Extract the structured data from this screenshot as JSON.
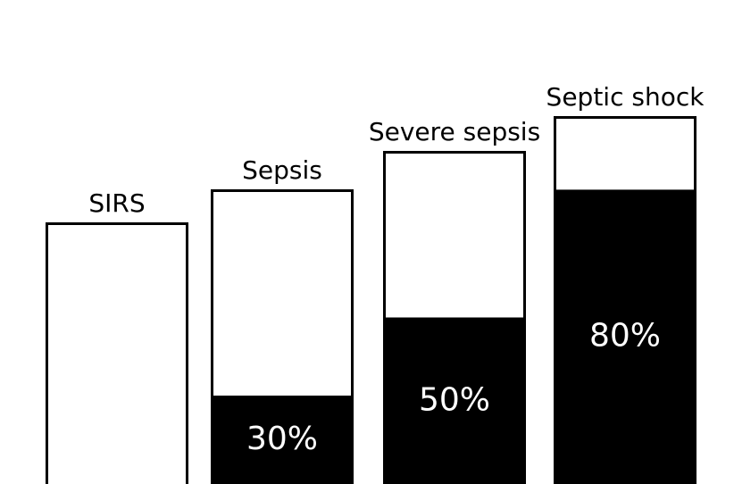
{
  "chart_data": {
    "type": "bar",
    "categories": [
      "SIRS",
      "Sepsis",
      "Severe sepsis",
      "Septic shock"
    ],
    "values": [
      0,
      30,
      50,
      80
    ],
    "value_labels": [
      "",
      "30%",
      "50%",
      "80%"
    ],
    "title": "",
    "xlabel": "",
    "ylabel": "",
    "grid": false,
    "legend": "none",
    "colors": {
      "filled": "#000000",
      "empty": "#ffffff",
      "outline": "#000000",
      "label_on_fill": "#ffffff"
    }
  }
}
